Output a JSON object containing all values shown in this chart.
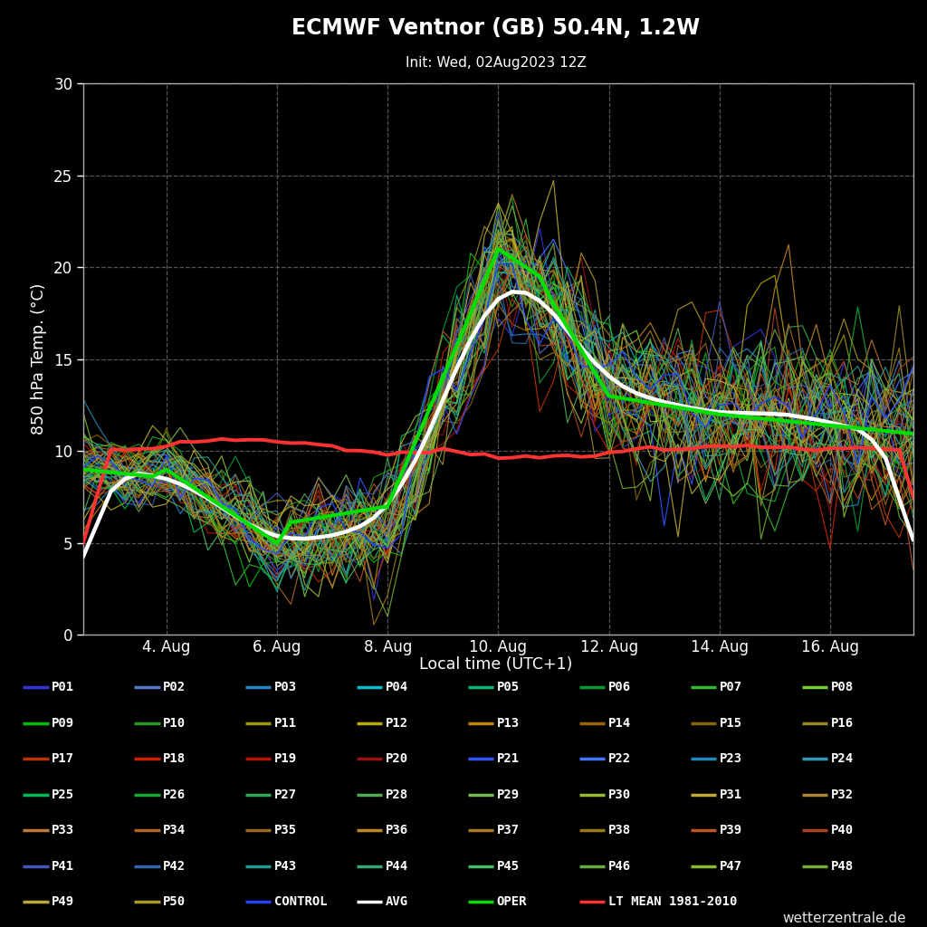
{
  "title": "ECMWF Ventnor (GB) 50.4N, 1.2W",
  "subtitle": "Init: Wed, 02Aug2023 12Z",
  "xlabel": "Local time (UTC+1)",
  "ylabel": "850 hPa Temp. (°C)",
  "watermark": "wetterzentrale.de",
  "bg_color": "#000000",
  "plot_bg_color": "#000000",
  "text_color": "#ffffff",
  "ylim": [
    0,
    30
  ],
  "yticks": [
    0,
    5,
    10,
    15,
    20,
    25,
    30
  ],
  "xtick_labels": [
    "4. Aug",
    "6. Aug",
    "8. Aug",
    "10. Aug",
    "12. Aug",
    "14. Aug",
    "16. Aug"
  ],
  "member_colors": {
    "P01": "#3333dd",
    "P02": "#5577cc",
    "P03": "#2288cc",
    "P04": "#00bbcc",
    "P05": "#00bb77",
    "P06": "#009933",
    "P07": "#33bb33",
    "P08": "#77cc33",
    "P09": "#00bb00",
    "P10": "#229922",
    "P11": "#999900",
    "P12": "#bbaa00",
    "P13": "#bb8800",
    "P14": "#996600",
    "P15": "#886600",
    "P16": "#998822",
    "P17": "#bb3300",
    "P18": "#cc2200",
    "P19": "#bb1100",
    "P20": "#991111",
    "P21": "#3355ff",
    "P22": "#4477ff",
    "P23": "#2288bb",
    "P24": "#3399bb",
    "P25": "#00bb55",
    "P26": "#11aa33",
    "P27": "#33aa55",
    "P28": "#55aa55",
    "P29": "#77bb55",
    "P30": "#99bb33",
    "P31": "#bbaa33",
    "P32": "#aa8833",
    "P33": "#bb7733",
    "P34": "#aa6622",
    "P35": "#996622",
    "P36": "#bb8822",
    "P37": "#aa7722",
    "P38": "#997711",
    "P39": "#bb5522",
    "P40": "#aa4422",
    "P41": "#4455bb",
    "P42": "#3366aa",
    "P43": "#229999",
    "P44": "#33aa77",
    "P45": "#44bb66",
    "P46": "#66aa44",
    "P47": "#88bb33",
    "P48": "#77aa33",
    "P49": "#bbaa33",
    "P50": "#aa9922",
    "CONTROL": "#2244ff",
    "AVG": "#ffffff",
    "OPER": "#00dd00",
    "LT_MEAN": "#ff3333"
  }
}
